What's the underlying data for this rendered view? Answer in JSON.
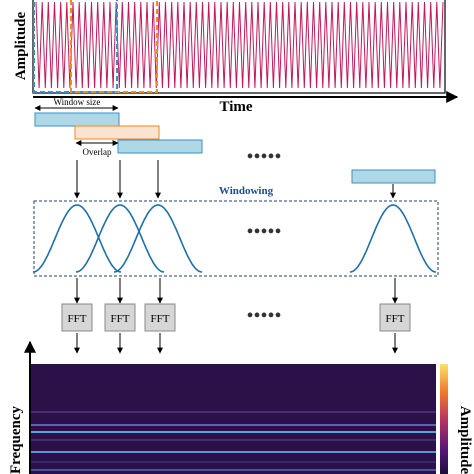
{
  "signal": {
    "y_label": "Amplitude",
    "x_label": "Time",
    "line_color": "#c2185b"
  },
  "windowing": {
    "window_size_label": "Window size",
    "overlap_label": "Overlap",
    "section_label": "Windowing",
    "window_color": "#aed8e6",
    "overlap_window_color": "#fbe3d2",
    "curve_color": "#1f6fa8",
    "dots": "•••••"
  },
  "fft": {
    "box_label": "FFT"
  },
  "spectrogram": {
    "y_label": "Frequency",
    "colorbar_label": "Amplitude",
    "background_color": "#2b1147"
  }
}
